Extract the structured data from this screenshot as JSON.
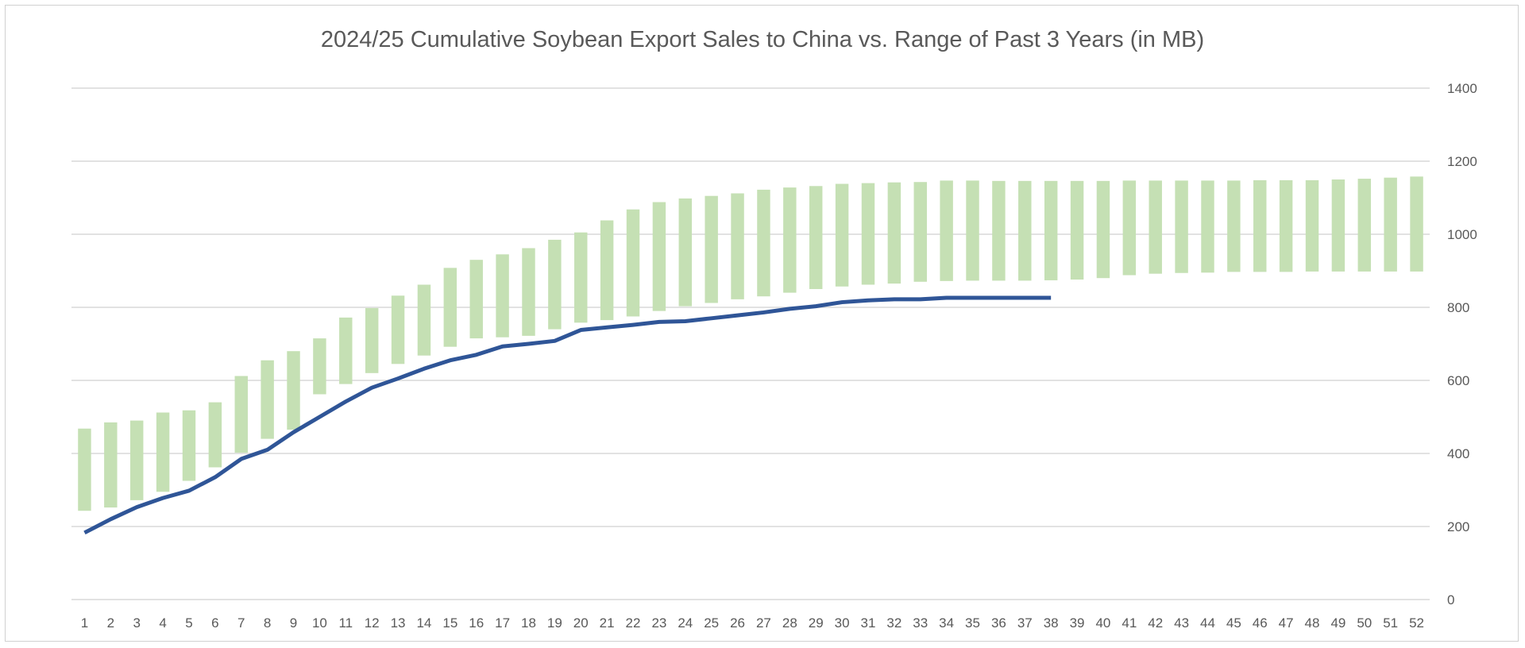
{
  "chart_data": {
    "type": "bar",
    "title": "2024/25 Cumulative Soybean Export Sales to China vs. Range of Past 3 Years (in MB)",
    "xlabel": "",
    "ylabel": "",
    "ylim": [
      0,
      1400
    ],
    "yticks": [
      0,
      200,
      400,
      600,
      800,
      1000,
      1200,
      1400
    ],
    "y_axis_position": "right",
    "grid": true,
    "legend": "none",
    "categories": [
      "1",
      "2",
      "3",
      "4",
      "5",
      "6",
      "7",
      "8",
      "9",
      "10",
      "11",
      "12",
      "13",
      "14",
      "15",
      "16",
      "17",
      "18",
      "19",
      "20",
      "21",
      "22",
      "23",
      "24",
      "25",
      "26",
      "27",
      "28",
      "29",
      "30",
      "31",
      "32",
      "33",
      "34",
      "35",
      "36",
      "37",
      "38",
      "39",
      "40",
      "41",
      "42",
      "43",
      "44",
      "45",
      "46",
      "47",
      "48",
      "49",
      "50",
      "51",
      "52"
    ],
    "range_series": {
      "low": [
        243,
        252,
        272,
        295,
        325,
        362,
        402,
        440,
        465,
        562,
        590,
        620,
        645,
        668,
        692,
        715,
        718,
        722,
        740,
        758,
        765,
        775,
        790,
        803,
        812,
        822,
        830,
        840,
        850,
        857,
        862,
        865,
        870,
        872,
        873,
        873,
        873,
        874,
        876,
        880,
        888,
        892,
        894,
        895,
        897,
        897,
        897,
        898,
        898,
        898,
        898,
        898
      ],
      "high": [
        468,
        485,
        490,
        512,
        518,
        540,
        612,
        655,
        680,
        715,
        772,
        798,
        832,
        862,
        908,
        930,
        945,
        962,
        985,
        1005,
        1038,
        1068,
        1088,
        1098,
        1105,
        1112,
        1122,
        1128,
        1132,
        1138,
        1140,
        1142,
        1143,
        1147,
        1147,
        1146,
        1146,
        1146,
        1146,
        1146,
        1147,
        1147,
        1147,
        1147,
        1147,
        1148,
        1148,
        1148,
        1150,
        1152,
        1155,
        1158
      ],
      "color": "#c5e0b4"
    },
    "line_series": {
      "values": [
        183,
        220,
        253,
        278,
        298,
        335,
        385,
        410,
        458,
        500,
        542,
        580,
        605,
        632,
        655,
        670,
        693,
        700,
        708,
        738,
        745,
        752,
        760,
        762,
        770,
        778,
        786,
        796,
        803,
        814,
        819,
        822,
        822,
        826,
        826,
        826,
        826,
        826
      ],
      "color": "#2f5597"
    }
  }
}
